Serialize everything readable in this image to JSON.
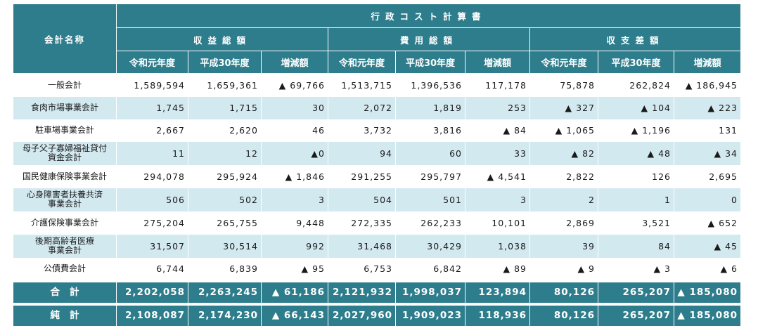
{
  "table": {
    "title": "行政コスト計算書",
    "name_header": "会計名称",
    "groups": [
      "収益総額",
      "費用総額",
      "収支差額"
    ],
    "subheaders": [
      "令和元年度",
      "平成30年度",
      "増減額"
    ],
    "rows": [
      {
        "name": "一般会計",
        "values": [
          "1,589,594",
          "1,659,361",
          "▲ 69,766",
          "1,513,715",
          "1,396,536",
          "117,178",
          "75,878",
          "262,824",
          "▲ 186,945"
        ]
      },
      {
        "name": "食肉市場事業会計",
        "values": [
          "1,745",
          "1,715",
          "30",
          "2,072",
          "1,819",
          "253",
          "▲ 327",
          "▲ 104",
          "▲ 223"
        ]
      },
      {
        "name": "駐車場事業会計",
        "values": [
          "2,667",
          "2,620",
          "46",
          "3,732",
          "3,816",
          "▲ 84",
          "▲ 1,065",
          "▲ 1,196",
          "131"
        ]
      },
      {
        "name": "母子父子寡婦福祉貸付\n資金会計",
        "values": [
          "11",
          "12",
          "▲0",
          "94",
          "60",
          "33",
          "▲ 82",
          "▲ 48",
          "▲ 34"
        ]
      },
      {
        "name": "国民健康保険事業会計",
        "values": [
          "294,078",
          "295,924",
          "▲ 1,846",
          "291,255",
          "295,797",
          "▲ 4,541",
          "2,822",
          "126",
          "2,695"
        ]
      },
      {
        "name": "心身障害者扶養共済\n事業会計",
        "values": [
          "506",
          "502",
          "3",
          "504",
          "501",
          "3",
          "2",
          "1",
          "0"
        ]
      },
      {
        "name": "介護保険事業会計",
        "values": [
          "275,204",
          "265,755",
          "9,448",
          "272,335",
          "262,233",
          "10,101",
          "2,869",
          "3,521",
          "▲ 652"
        ]
      },
      {
        "name": "後期高齢者医療\n事業会計",
        "values": [
          "31,507",
          "30,514",
          "992",
          "31,468",
          "30,429",
          "1,038",
          "39",
          "84",
          "▲ 45"
        ]
      },
      {
        "name": "公債費会計",
        "values": [
          "6,744",
          "6,839",
          "▲ 95",
          "6,753",
          "6,842",
          "▲ 89",
          "▲ 9",
          "▲ 3",
          "▲ 6"
        ]
      }
    ],
    "totals": [
      {
        "name": "合計",
        "values": [
          "2,202,058",
          "2,263,245",
          "▲ 61,186",
          "2,121,932",
          "1,998,037",
          "123,894",
          "80,126",
          "265,207",
          "▲ 185,080"
        ]
      },
      {
        "name": "純計",
        "values": [
          "2,108,087",
          "2,174,230",
          "▲ 66,143",
          "2,027,960",
          "1,909,023",
          "118,936",
          "80,126",
          "265,207",
          "▲ 185,080"
        ]
      }
    ]
  },
  "colors": {
    "header_bg": "#2e7d8c",
    "stripe": "#d3e9f0",
    "header_text": "#ffffff"
  }
}
